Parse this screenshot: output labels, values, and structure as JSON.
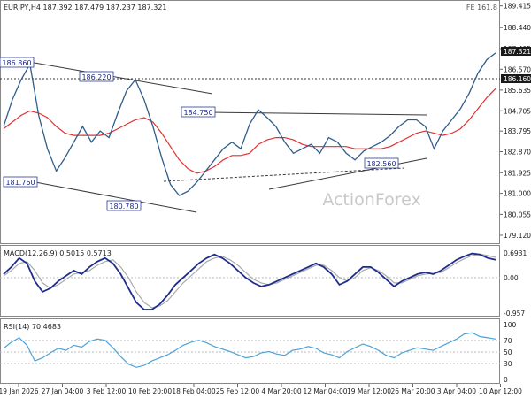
{
  "header": {
    "symbol_line": "EURJPY,H4  187.392 187.479 187.237 187.321",
    "fe_label": "FE 161.8"
  },
  "watermark": "ActionForex",
  "colors": {
    "price": "#2f5d8a",
    "ma": "#e03030",
    "macd": "#1f2d8c",
    "signal": "#aaaaaa",
    "rsi": "#4da3d8",
    "trendline": "#3a3a3a",
    "label_border": "#2a3a9a",
    "grid": "#bbbbbb"
  },
  "chart_data": [
    {
      "type": "line",
      "title": "EURJPY,H4",
      "ylim": [
        178.8,
        189.6
      ],
      "y_ticks": [
        "189.415",
        "188.440",
        "187.495",
        "186.570",
        "185.635",
        "184.705",
        "183.795",
        "182.870",
        "181.925",
        "181.000",
        "180.055",
        "179.120"
      ],
      "current_price": "187.321",
      "level_line": "186.160",
      "x_tick_labels": [
        "19 Jan 2026",
        "27 Jan 04:00",
        "3 Feb 12:00",
        "10 Feb 20:00",
        "18 Feb 04:00",
        "25 Feb 12:00",
        "4 Mar 20:00",
        "12 Mar 04:00",
        "19 Mar 12:00",
        "26 Mar 20:00",
        "3 Apr 04:00",
        "10 Apr 12:00"
      ],
      "price_labels": [
        "186.860",
        "186.220",
        "181.760",
        "180.780",
        "184.750",
        "182.560"
      ],
      "series": [
        {
          "values": [
            184.0,
            185.2,
            186.1,
            186.8,
            184.5,
            183.0,
            182.0,
            182.6,
            183.3,
            184.0,
            183.3,
            183.8,
            183.5,
            184.6,
            185.6,
            186.1,
            185.2,
            184.0,
            182.6,
            181.4,
            180.9,
            181.1,
            181.5,
            182.0,
            182.5,
            183.0,
            183.3,
            183.0,
            184.1,
            184.75,
            184.4,
            184.0,
            183.3,
            182.8,
            183.0,
            183.2,
            182.8,
            183.5,
            183.3,
            182.8,
            182.5,
            182.9,
            183.1,
            183.3,
            183.6,
            184.0,
            184.3,
            184.3,
            184.0,
            183.0,
            183.8,
            184.3,
            184.8,
            185.5,
            186.4,
            187.0,
            187.3
          ]
        },
        {
          "values": [
            183.9,
            184.2,
            184.5,
            184.7,
            184.6,
            184.4,
            184.0,
            183.7,
            183.6,
            183.6,
            183.6,
            183.6,
            183.7,
            183.9,
            184.1,
            184.3,
            184.4,
            184.2,
            183.7,
            183.1,
            182.5,
            182.1,
            181.9,
            182.0,
            182.2,
            182.5,
            182.7,
            182.7,
            182.8,
            183.2,
            183.4,
            183.5,
            183.5,
            183.4,
            183.2,
            183.1,
            183.1,
            183.1,
            183.1,
            183.1,
            183.0,
            183.0,
            183.0,
            183.0,
            183.1,
            183.3,
            183.5,
            183.7,
            183.8,
            183.7,
            183.6,
            183.7,
            183.9,
            184.3,
            184.8,
            185.3,
            185.7
          ]
        }
      ]
    },
    {
      "type": "line",
      "title": "MACD(12,26,9) 0.5015 0.5713",
      "ylim": [
        -1.05,
        0.82
      ],
      "y_ticks": [
        "0.6931",
        "0.00",
        "-0.957"
      ],
      "series": [
        {
          "values": [
            0.1,
            0.3,
            0.55,
            0.4,
            -0.1,
            -0.4,
            -0.3,
            -0.1,
            0.05,
            0.2,
            0.1,
            0.3,
            0.45,
            0.55,
            0.4,
            0.1,
            -0.3,
            -0.7,
            -0.9,
            -0.9,
            -0.75,
            -0.5,
            -0.2,
            0.0,
            0.2,
            0.4,
            0.55,
            0.65,
            0.55,
            0.4,
            0.2,
            0.0,
            -0.15,
            -0.25,
            -0.2,
            -0.1,
            0.0,
            0.1,
            0.2,
            0.3,
            0.4,
            0.3,
            0.1,
            -0.2,
            -0.1,
            0.1,
            0.3,
            0.3,
            0.15,
            -0.05,
            -0.25,
            -0.1,
            0.0,
            0.1,
            0.15,
            0.1,
            0.2,
            0.35,
            0.5,
            0.6,
            0.68,
            0.65,
            0.55,
            0.5
          ]
        },
        {
          "values": [
            0.05,
            0.2,
            0.4,
            0.45,
            0.2,
            -0.15,
            -0.3,
            -0.2,
            -0.05,
            0.1,
            0.15,
            0.2,
            0.35,
            0.45,
            0.5,
            0.3,
            0.0,
            -0.4,
            -0.7,
            -0.85,
            -0.8,
            -0.65,
            -0.4,
            -0.15,
            0.05,
            0.25,
            0.45,
            0.55,
            0.6,
            0.5,
            0.35,
            0.15,
            -0.05,
            -0.15,
            -0.2,
            -0.15,
            -0.05,
            0.05,
            0.15,
            0.25,
            0.35,
            0.35,
            0.2,
            0.0,
            -0.1,
            0.0,
            0.2,
            0.28,
            0.2,
            0.05,
            -0.15,
            -0.15,
            -0.05,
            0.05,
            0.1,
            0.12,
            0.15,
            0.28,
            0.42,
            0.53,
            0.62,
            0.66,
            0.62,
            0.57
          ]
        }
      ]
    },
    {
      "type": "line",
      "title": "RSI(14) 70.4683",
      "ylim": [
        0,
        100
      ],
      "y_ticks": [
        "100",
        "70",
        "50",
        "30",
        "0"
      ],
      "series": [
        {
          "values": [
            55,
            65,
            72,
            60,
            35,
            40,
            48,
            55,
            52,
            60,
            57,
            66,
            70,
            68,
            56,
            42,
            30,
            25,
            28,
            35,
            40,
            45,
            52,
            60,
            65,
            68,
            64,
            58,
            54,
            50,
            45,
            40,
            42,
            48,
            50,
            46,
            44,
            52,
            54,
            58,
            55,
            48,
            45,
            40,
            50,
            56,
            62,
            58,
            52,
            44,
            40,
            48,
            52,
            56,
            54,
            52,
            58,
            64,
            70,
            78,
            80,
            74,
            72,
            70
          ]
        }
      ]
    }
  ]
}
